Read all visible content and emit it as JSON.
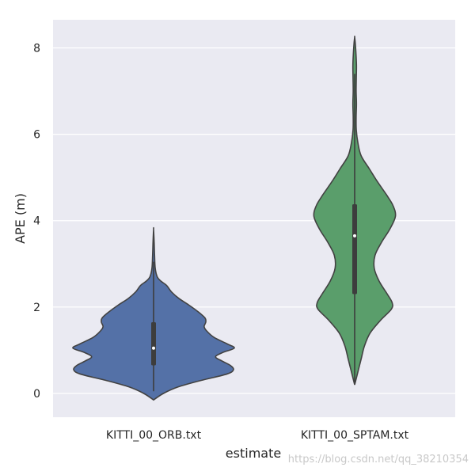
{
  "chart_data": {
    "type": "violin",
    "xlabel": "estimate",
    "ylabel": "APE (m)",
    "ylim": [
      -0.55,
      8.65
    ],
    "yticks": [
      "0",
      "2",
      "4",
      "6",
      "8"
    ],
    "grid": true,
    "background": "#eaeaf2",
    "grid_color": "#ffffff",
    "categories": [
      "KITTI_00_ORB.txt",
      "KITTI_00_SPTAM.txt"
    ],
    "series": [
      {
        "category": "KITTI_00_ORB.txt",
        "color": "#5471a7",
        "min": -0.15,
        "max": 3.8,
        "q1": 0.65,
        "median": 1.05,
        "q3": 1.65,
        "whisker_low": 0.05,
        "whisker_high": 3.05,
        "density": [
          [
            -0.15,
            0.0
          ],
          [
            0.0,
            0.12
          ],
          [
            0.15,
            0.3
          ],
          [
            0.3,
            0.58
          ],
          [
            0.45,
            0.9
          ],
          [
            0.55,
            0.98
          ],
          [
            0.65,
            0.94
          ],
          [
            0.75,
            0.84
          ],
          [
            0.85,
            0.76
          ],
          [
            0.95,
            0.85
          ],
          [
            1.05,
            0.99
          ],
          [
            1.15,
            0.9
          ],
          [
            1.3,
            0.74
          ],
          [
            1.45,
            0.65
          ],
          [
            1.55,
            0.62
          ],
          [
            1.65,
            0.64
          ],
          [
            1.75,
            0.63
          ],
          [
            1.9,
            0.54
          ],
          [
            2.05,
            0.43
          ],
          [
            2.2,
            0.31
          ],
          [
            2.35,
            0.22
          ],
          [
            2.5,
            0.16
          ],
          [
            2.6,
            0.09
          ],
          [
            2.7,
            0.045
          ],
          [
            2.9,
            0.02
          ],
          [
            3.2,
            0.012
          ],
          [
            3.5,
            0.007
          ],
          [
            3.8,
            0.0
          ]
        ]
      },
      {
        "category": "KITTI_00_SPTAM.txt",
        "color": "#5a9e6b",
        "min": 0.2,
        "max": 8.25,
        "q1": 2.3,
        "median": 3.65,
        "q3": 4.38,
        "whisker_low": 0.25,
        "whisker_high": 7.4,
        "density": [
          [
            0.2,
            0.0
          ],
          [
            0.5,
            0.04
          ],
          [
            0.8,
            0.08
          ],
          [
            1.1,
            0.12
          ],
          [
            1.4,
            0.19
          ],
          [
            1.7,
            0.32
          ],
          [
            1.95,
            0.45
          ],
          [
            2.1,
            0.46
          ],
          [
            2.3,
            0.4
          ],
          [
            2.6,
            0.3
          ],
          [
            2.9,
            0.24
          ],
          [
            3.2,
            0.25
          ],
          [
            3.5,
            0.33
          ],
          [
            3.8,
            0.43
          ],
          [
            4.1,
            0.5
          ],
          [
            4.35,
            0.47
          ],
          [
            4.6,
            0.39
          ],
          [
            4.9,
            0.28
          ],
          [
            5.2,
            0.18
          ],
          [
            5.5,
            0.08
          ],
          [
            5.8,
            0.04
          ],
          [
            6.1,
            0.02
          ],
          [
            6.4,
            0.018
          ],
          [
            6.7,
            0.022
          ],
          [
            7.0,
            0.018
          ],
          [
            7.3,
            0.02
          ],
          [
            7.6,
            0.022
          ],
          [
            7.9,
            0.015
          ],
          [
            8.1,
            0.008
          ],
          [
            8.25,
            0.0
          ]
        ]
      }
    ]
  },
  "watermark": "https://blog.csdn.net/qq_38210354"
}
